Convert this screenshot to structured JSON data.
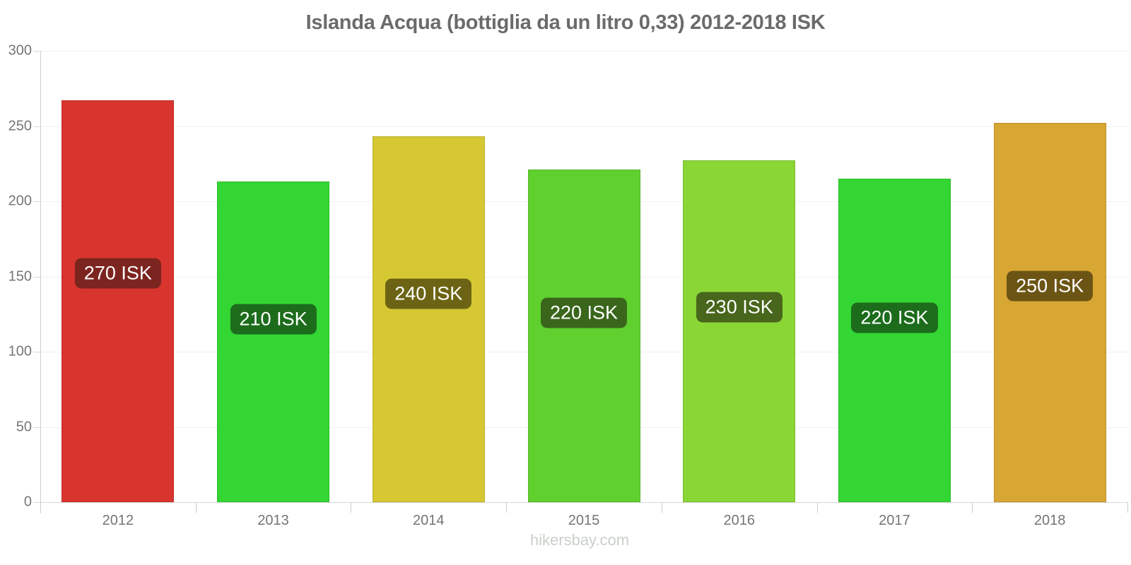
{
  "header": {
    "title": "Islanda Acqua (bottiglia da un litro 0,33) 2012-2018 ISK"
  },
  "footer": {
    "text": "hikersbay.com"
  },
  "chart_data": {
    "type": "bar",
    "title": "Islanda Acqua (bottiglia da un litro 0,33) 2012-2018 ISK",
    "xlabel": "",
    "ylabel": "",
    "ylim": [
      0,
      300
    ],
    "y_ticks": [
      300,
      250,
      200,
      150,
      100,
      50,
      0
    ],
    "grid": "horizontal",
    "legend": "none",
    "categories": [
      "2012",
      "2013",
      "2014",
      "2015",
      "2016",
      "2017",
      "2018"
    ],
    "values": [
      267,
      213,
      243,
      221,
      227,
      215,
      252
    ],
    "data_labels": [
      "270 ISK",
      "210 ISK",
      "240 ISK",
      "220 ISK",
      "230 ISK",
      "220 ISK",
      "250 ISK"
    ],
    "bar_colors": [
      "#d8352e",
      "#33d633",
      "#d6c832",
      "#60d02e",
      "#8ad636",
      "#33d633",
      "#d8a633"
    ],
    "label_badge_colors": [
      "#7c241f",
      "#1c6c1c",
      "#6c6414",
      "#3a661c",
      "#48661c",
      "#1c6c1c",
      "#6c5514"
    ],
    "label_text_color": "#ffffff",
    "axis_text_color": "#757575",
    "title_color": "#6b6b6b"
  }
}
